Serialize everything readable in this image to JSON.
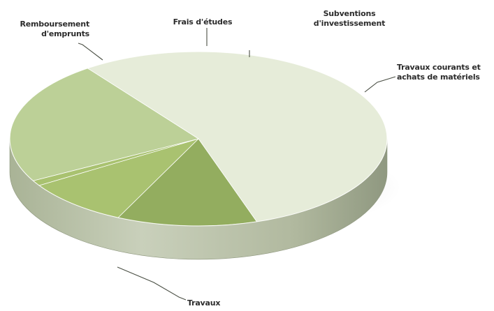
{
  "chart_data": {
    "type": "pie",
    "title": "",
    "three_d": true,
    "legend": "none",
    "categories": [
      "Travaux",
      "Remboursement d'emprunts",
      "Frais d'études",
      "Subventions d'investissement",
      "Travaux courants et achats de matériels"
    ],
    "values": [
      55,
      12,
      9,
      1,
      23
    ],
    "colors": [
      "#e6ecd9",
      "#93ad5f",
      "#a9c270",
      "#a9c270",
      "#bcd097"
    ],
    "labels": {
      "travaux": "Travaux",
      "remboursement": "Remboursement\nd'emprunts",
      "frais": "Frais d'études",
      "subventions": "Subventions\nd'investissement",
      "travaux_courants": "Travaux courants et\nachats de matériels"
    }
  }
}
